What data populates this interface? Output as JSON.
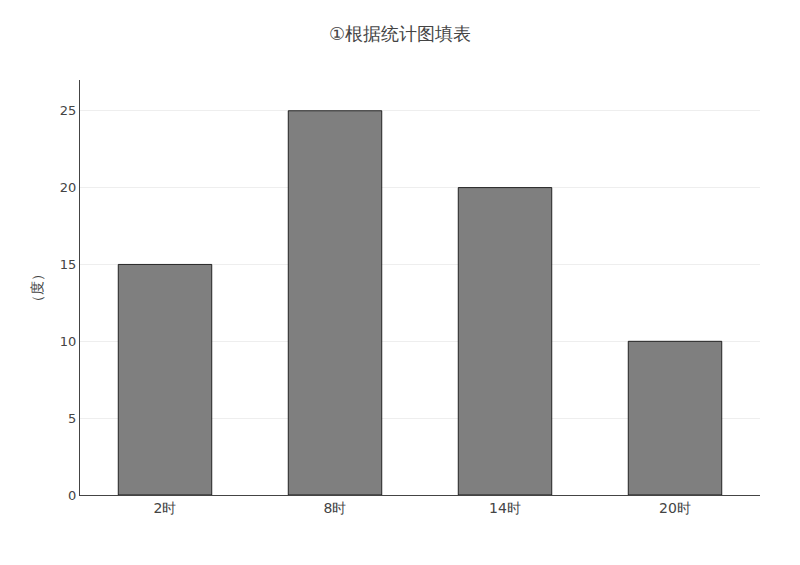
{
  "chart_data": {
    "type": "bar",
    "title": "①根据统计图填表",
    "ylabel": "（度）",
    "categories": [
      "2时",
      "8时",
      "14时",
      "20时"
    ],
    "values": [
      15,
      25,
      20,
      10
    ],
    "color": "#7f7f7f",
    "ylim": [
      0,
      27
    ],
    "yticks": [
      0,
      5,
      10,
      15,
      20,
      25
    ],
    "grid": true
  }
}
